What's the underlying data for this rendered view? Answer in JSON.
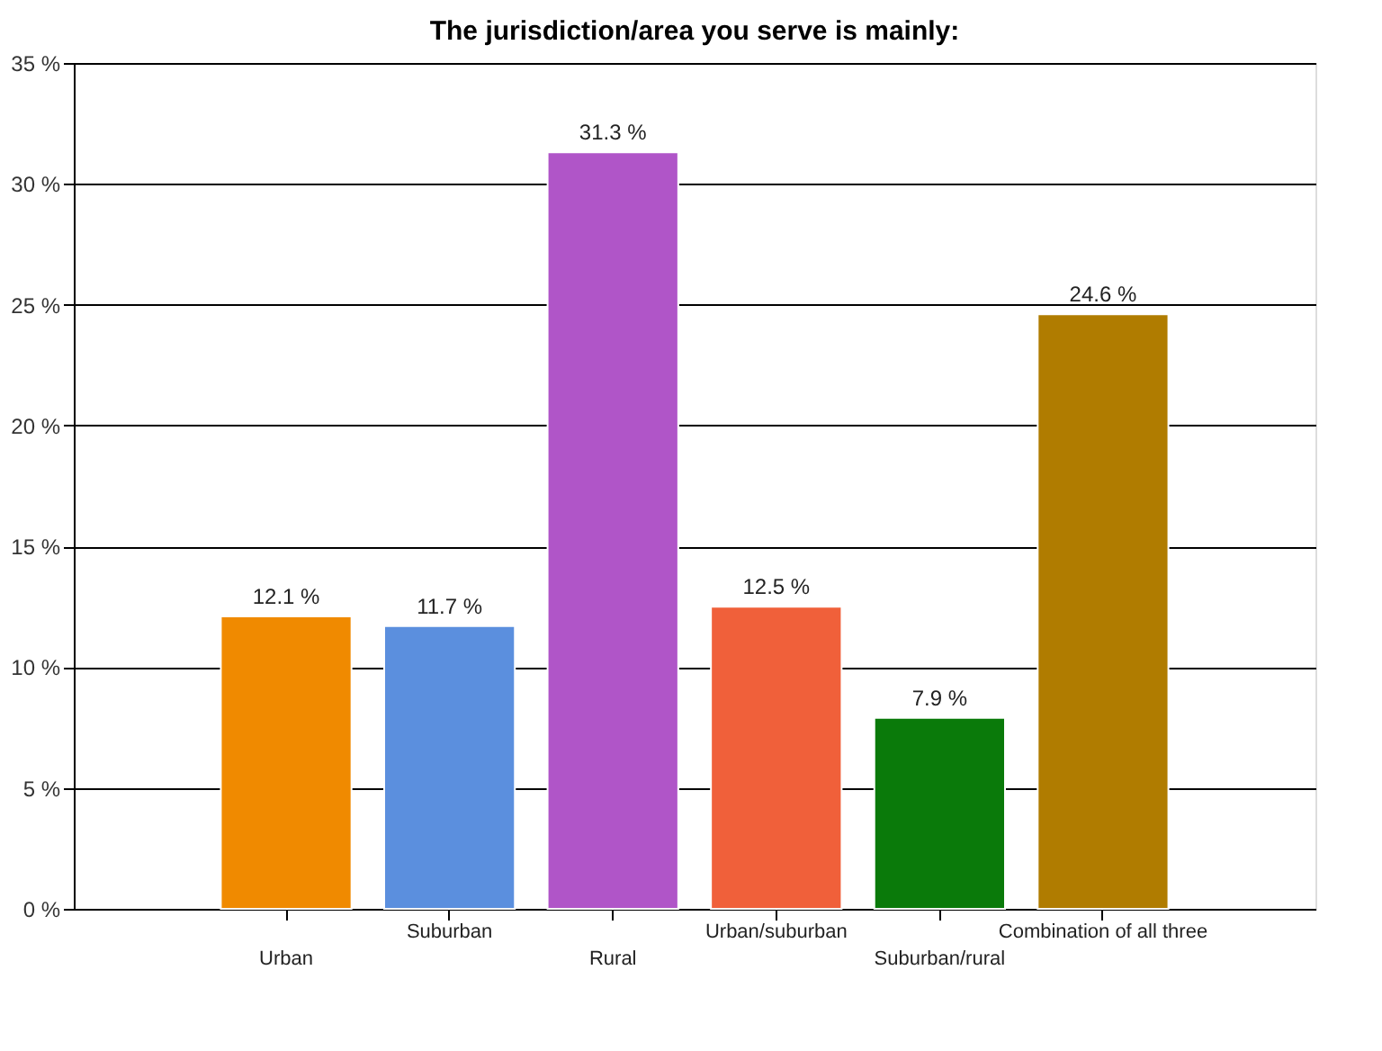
{
  "chart_data": {
    "type": "bar",
    "title": "The jurisdiction/area you serve is mainly:",
    "categories": [
      "Urban",
      "Suburban",
      "Rural",
      "Urban/suburban",
      "Suburban/rural",
      "Combination of all three"
    ],
    "values": [
      12.1,
      11.7,
      31.3,
      12.5,
      7.9,
      24.6
    ],
    "colors": [
      "#f08a00",
      "#5b8fde",
      "#b055c8",
      "#f0603a",
      "#0a7a0a",
      "#b07c00"
    ],
    "value_labels": [
      "12.1 %",
      "11.7 %",
      "31.3 %",
      "12.5 %",
      "7.9 %",
      "24.6 %"
    ],
    "ylim": [
      0,
      35
    ],
    "yticks": [
      {
        "value": 0,
        "label": "0 %"
      },
      {
        "value": 5,
        "label": "5 %"
      },
      {
        "value": 10,
        "label": "10 %"
      },
      {
        "value": 15,
        "label": "15 %"
      },
      {
        "value": 20,
        "label": "20 %"
      },
      {
        "value": 25,
        "label": "25 %"
      },
      {
        "value": 30,
        "label": "30 %"
      },
      {
        "value": 35,
        "label": "35 %"
      }
    ],
    "grid": "y"
  }
}
